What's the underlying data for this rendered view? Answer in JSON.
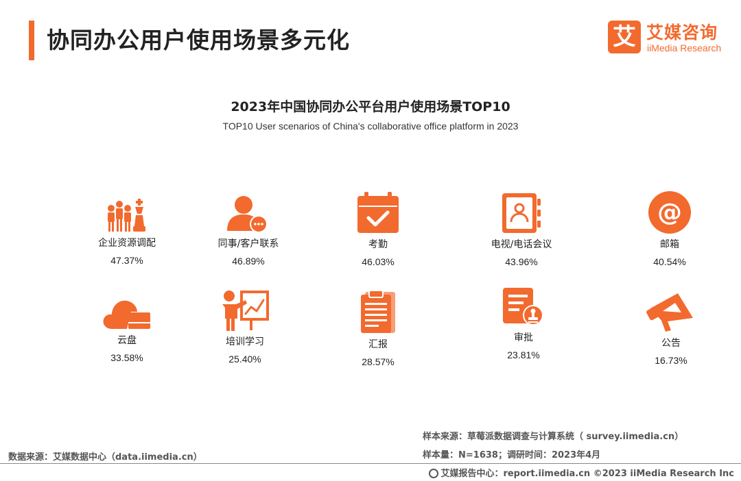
{
  "header": {
    "title": "协同办公用户使用场景多元化",
    "logo_mark": "艾",
    "logo_cn": "艾媒咨询",
    "logo_en": "iiMedia Research"
  },
  "colors": {
    "accent": "#f26a2e",
    "text": "#222222",
    "muted": "#555555"
  },
  "chart_data": {
    "type": "table",
    "title": "2023年中国协同办公平台用户使用场景TOP10",
    "subtitle": "TOP10 User scenarios of China's collaborative office platform in 2023",
    "items": [
      {
        "label": "企业资源调配",
        "value": "47.37%",
        "icon": "people-chess-icon"
      },
      {
        "label": "同事/客户联系",
        "value": "46.89%",
        "icon": "contact-chat-icon"
      },
      {
        "label": "考勤",
        "value": "46.03%",
        "icon": "calendar-check-icon"
      },
      {
        "label": "电视/电话会议",
        "value": "43.96%",
        "icon": "address-book-icon"
      },
      {
        "label": "邮箱",
        "value": "40.54%",
        "icon": "at-sign-icon"
      },
      {
        "label": "云盘",
        "value": "33.58%",
        "icon": "cloud-drive-icon"
      },
      {
        "label": "培训学习",
        "value": "25.40%",
        "icon": "training-board-icon"
      },
      {
        "label": "汇报",
        "value": "28.57%",
        "icon": "clipboard-report-icon"
      },
      {
        "label": "审批",
        "value": "23.81%",
        "icon": "approval-stamp-icon"
      },
      {
        "label": "公告",
        "value": "16.73%",
        "icon": "megaphone-icon"
      }
    ]
  },
  "footer": {
    "source_left": "数据来源：艾媒数据中心（data.iimedia.cn）",
    "sample_source": "样本来源：草莓派数据调查与计算系统（ survey.iimedia.cn）",
    "sample_size": "样本量：N=1638；调研时间：2023年4月",
    "copyright": "艾媒报告中心：report.iimedia.cn  ©2023  iiMedia Research  Inc"
  }
}
